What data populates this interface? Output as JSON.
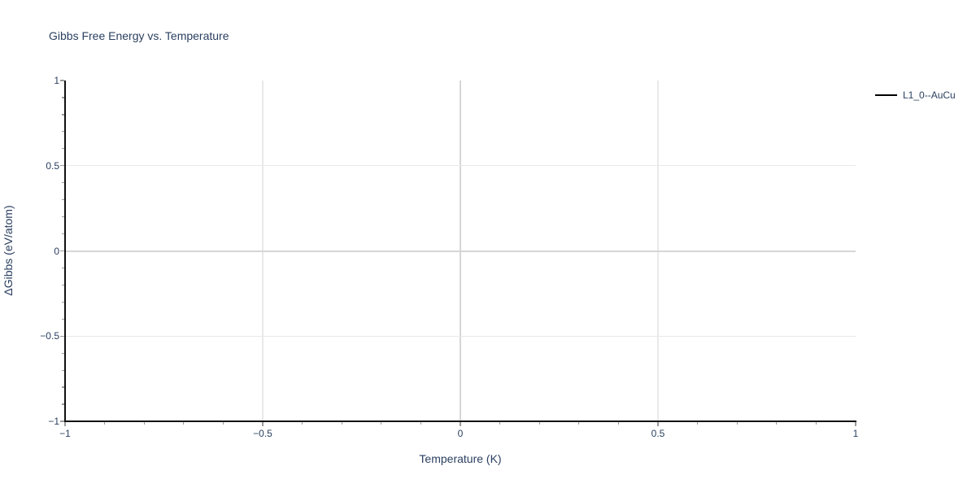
{
  "styles": {
    "background": "#ffffff",
    "text_color": "#2a3f5f",
    "axis_color": "#111111",
    "tick_color": "#9a9a9a",
    "grid_color": "#e9e9e9",
    "zeroline_color": "#d6d6d6",
    "series_color": "#000000"
  },
  "chart_data": {
    "type": "line",
    "title": "Gibbs Free Energy vs. Temperature",
    "xlabel": "Temperature (K)",
    "ylabel": "ΔGibbs (eV/atom)",
    "xlim": [
      -1,
      1
    ],
    "ylim": [
      -1,
      1
    ],
    "x_tick_values": [
      -1,
      -0.5,
      0,
      0.5,
      1
    ],
    "x_tick_labels": [
      "−1",
      "−0.5",
      "0",
      "0.5",
      "1"
    ],
    "y_tick_values": [
      -1,
      -0.5,
      0,
      0.5,
      1
    ],
    "y_tick_labels": [
      "−1",
      "−0.5",
      "0",
      "0.5",
      "1"
    ],
    "minor_tick_step": 0.1,
    "grid": true,
    "zero_lines": true,
    "legend_position": "outside-top-right",
    "series": [
      {
        "name": "L1_0--AuCu",
        "color": "#000000",
        "line_width": 2,
        "x": [],
        "y": []
      }
    ]
  }
}
